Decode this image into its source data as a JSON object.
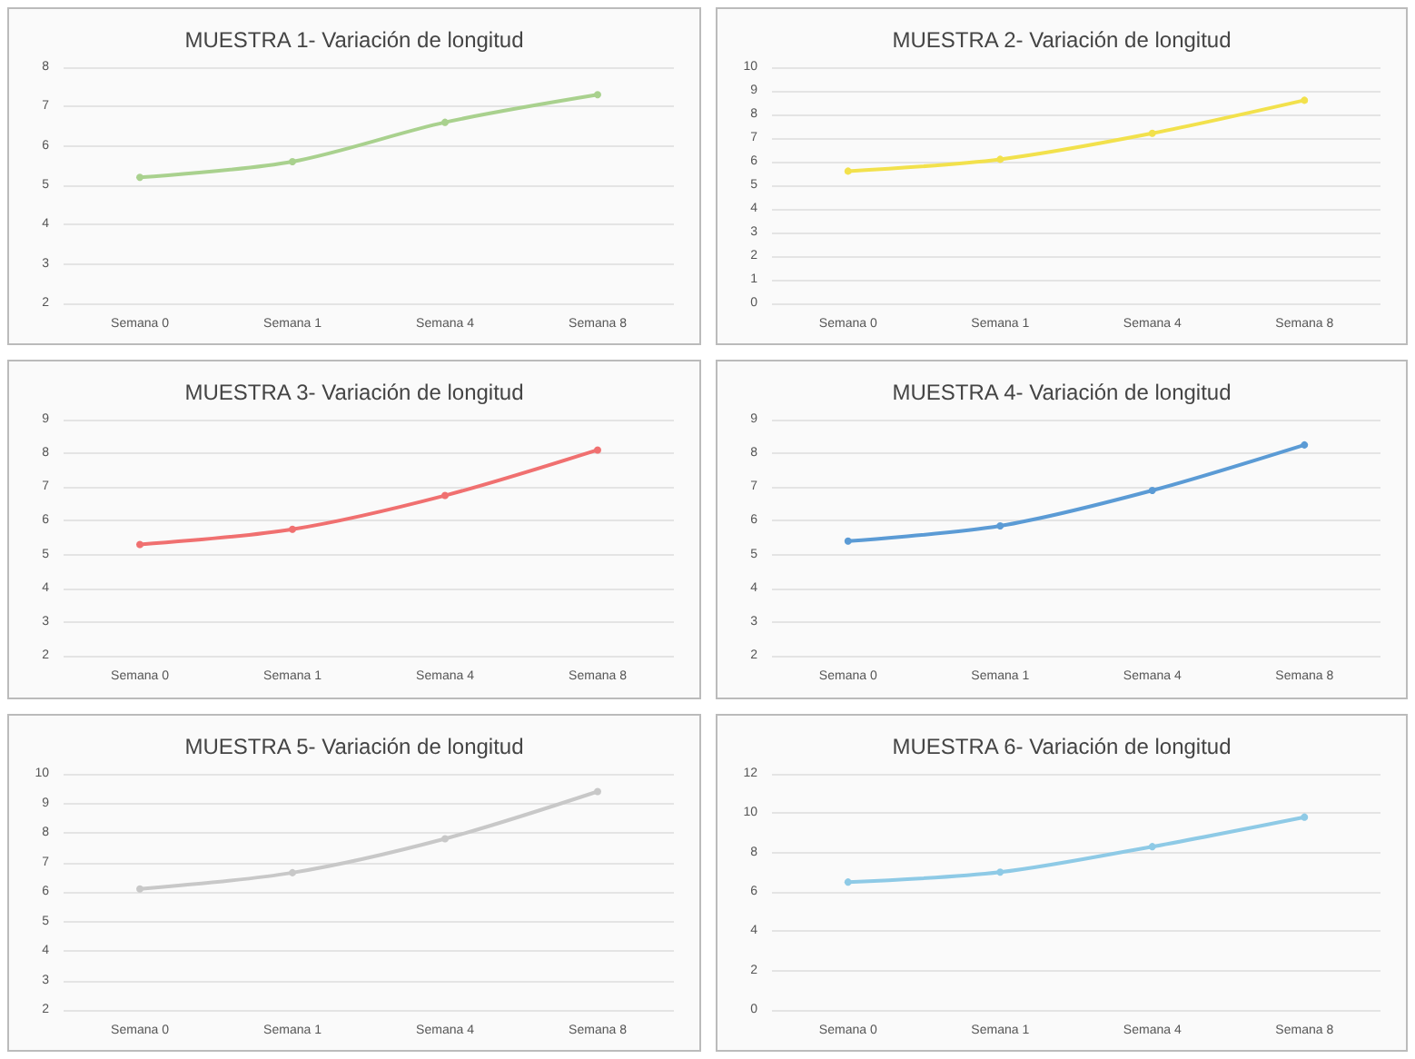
{
  "chart_data": [
    {
      "type": "line",
      "title": "MUESTRA 1- Variación de longitud",
      "categories": [
        "Semana 0",
        "Semana 1",
        "Semana 4",
        "Semana 8"
      ],
      "series": [
        {
          "color": "#a9d18e",
          "values": [
            5.2,
            5.6,
            6.6,
            7.3
          ]
        }
      ],
      "ylim": [
        2,
        8
      ],
      "yticks": [
        2,
        3,
        4,
        5,
        6,
        7,
        8
      ],
      "grid": "y",
      "marker": "circle",
      "line_style": "solid"
    },
    {
      "type": "line",
      "title": "MUESTRA 2- Variación de longitud",
      "categories": [
        "Semana 0",
        "Semana 1",
        "Semana 4",
        "Semana 8"
      ],
      "series": [
        {
          "color": "#f2e14c",
          "values": [
            5.6,
            6.1,
            7.2,
            8.6
          ]
        }
      ],
      "ylim": [
        0,
        10
      ],
      "yticks": [
        0,
        1,
        2,
        3,
        4,
        5,
        6,
        7,
        8,
        9,
        10
      ],
      "grid": "y",
      "marker": "circle",
      "line_style": "solid"
    },
    {
      "type": "line",
      "title": "MUESTRA 3- Variación de longitud",
      "categories": [
        "Semana 0",
        "Semana 1",
        "Semana 4",
        "Semana 8"
      ],
      "series": [
        {
          "color": "#f07070",
          "values": [
            5.3,
            5.75,
            6.75,
            8.1
          ]
        }
      ],
      "ylim": [
        2,
        9
      ],
      "yticks": [
        2,
        3,
        4,
        5,
        6,
        7,
        8,
        9
      ],
      "grid": "y",
      "marker": "circle",
      "line_style": "solid"
    },
    {
      "type": "line",
      "title": "MUESTRA 4- Variación de longitud",
      "categories": [
        "Semana 0",
        "Semana 1",
        "Semana 4",
        "Semana 8"
      ],
      "series": [
        {
          "color": "#5b9bd5",
          "values": [
            5.4,
            5.85,
            6.9,
            8.25
          ]
        }
      ],
      "ylim": [
        2,
        9
      ],
      "yticks": [
        2,
        3,
        4,
        5,
        6,
        7,
        8,
        9
      ],
      "grid": "y",
      "marker": "circle",
      "line_style": "solid"
    },
    {
      "type": "line",
      "title": "MUESTRA 5- Variación de longitud",
      "categories": [
        "Semana 0",
        "Semana 1",
        "Semana 4",
        "Semana 8"
      ],
      "series": [
        {
          "color": "#c8c8c8",
          "values": [
            6.1,
            6.65,
            7.8,
            9.4
          ]
        }
      ],
      "ylim": [
        2,
        10
      ],
      "yticks": [
        2,
        3,
        4,
        5,
        6,
        7,
        8,
        9,
        10
      ],
      "grid": "y",
      "marker": "circle",
      "line_style": "solid"
    },
    {
      "type": "line",
      "title": "MUESTRA 6- Variación de longitud",
      "categories": [
        "Semana 0",
        "Semana 1",
        "Semana 4",
        "Semana 8"
      ],
      "series": [
        {
          "color": "#8ecae6",
          "values": [
            6.5,
            7.0,
            8.3,
            9.8
          ]
        }
      ],
      "ylim": [
        0,
        12
      ],
      "yticks": [
        0,
        2,
        4,
        6,
        8,
        10,
        12
      ],
      "grid": "y",
      "marker": "circle",
      "line_style": "solid"
    }
  ]
}
